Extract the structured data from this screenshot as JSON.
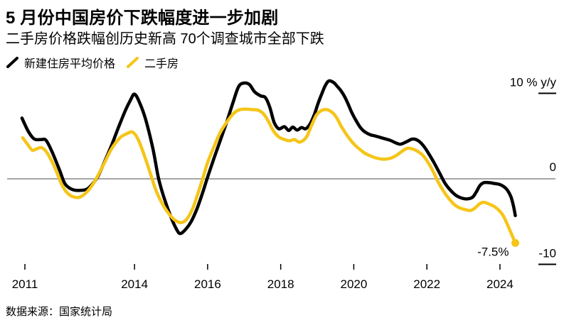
{
  "page": {
    "title": "5 月份中国房价下跌幅度进一步加剧",
    "subtitle": "二手房价格跌幅创历史新高 70个调查城市全部下跌",
    "source": "数据来源：国家统计局"
  },
  "legend": {
    "items": [
      {
        "label": "新建住房平均价格",
        "color": "#000000"
      },
      {
        "label": "二手房",
        "color": "#F5C518"
      }
    ]
  },
  "chart_data": {
    "type": "line",
    "title": "5 月份中国房价下跌幅度进一步加剧",
    "subtitle": "二手房价格跌幅创历史新高 70个调查城市全部下跌",
    "unit": "% y/y",
    "grid_color": "#6f6f6f",
    "x_axis": {
      "ticks": [
        2011,
        2014,
        2016,
        2018,
        2020,
        2022,
        2024
      ],
      "range": [
        2010.9,
        2024.45
      ]
    },
    "y_axis": {
      "range": [
        -10,
        10
      ],
      "labels": [
        {
          "value": 10,
          "text": "10 % y/y",
          "tick": true
        },
        {
          "value": 0,
          "text": "0",
          "tick": false
        },
        {
          "value": -10,
          "text": "-10",
          "tick": true
        }
      ]
    },
    "annotation": {
      "text": "-7.5%",
      "series": "二手房",
      "value": -7.5
    },
    "series": [
      {
        "name": "新建住房平均价格",
        "color": "#000000",
        "end_dot": false,
        "points": [
          [
            2010.92,
            7.1
          ],
          [
            2011.1,
            5.5
          ],
          [
            2011.26,
            4.65
          ],
          [
            2011.45,
            4.6
          ],
          [
            2011.58,
            4.5
          ],
          [
            2011.75,
            3.1
          ],
          [
            2011.95,
            1.0
          ],
          [
            2012.1,
            -0.6
          ],
          [
            2012.3,
            -1.25
          ],
          [
            2012.5,
            -1.35
          ],
          [
            2012.7,
            -1.2
          ],
          [
            2012.85,
            -0.6
          ],
          [
            2013.0,
            0.3
          ],
          [
            2013.18,
            2.0
          ],
          [
            2013.37,
            3.9
          ],
          [
            2013.55,
            5.9
          ],
          [
            2013.75,
            8.0
          ],
          [
            2013.9,
            9.3
          ],
          [
            2014.0,
            9.9
          ],
          [
            2014.13,
            9.0
          ],
          [
            2014.3,
            7.0
          ],
          [
            2014.5,
            3.6
          ],
          [
            2014.65,
            0.2
          ],
          [
            2014.8,
            -2.1
          ],
          [
            2015.0,
            -4.5
          ],
          [
            2015.15,
            -5.9
          ],
          [
            2015.25,
            -6.4
          ],
          [
            2015.4,
            -5.9
          ],
          [
            2015.55,
            -5.0
          ],
          [
            2015.7,
            -3.6
          ],
          [
            2015.85,
            -1.8
          ],
          [
            2016.0,
            0.2
          ],
          [
            2016.15,
            2.1
          ],
          [
            2016.33,
            4.3
          ],
          [
            2016.52,
            6.6
          ],
          [
            2016.7,
            9.0
          ],
          [
            2016.85,
            10.8
          ],
          [
            2017.0,
            11.2
          ],
          [
            2017.15,
            11.0
          ],
          [
            2017.28,
            10.2
          ],
          [
            2017.45,
            9.7
          ],
          [
            2017.58,
            9.5
          ],
          [
            2017.7,
            8.4
          ],
          [
            2017.82,
            6.6
          ],
          [
            2017.95,
            5.85
          ],
          [
            2018.1,
            6.1
          ],
          [
            2018.22,
            5.65
          ],
          [
            2018.33,
            6.05
          ],
          [
            2018.45,
            5.7
          ],
          [
            2018.57,
            6.0
          ],
          [
            2018.68,
            5.85
          ],
          [
            2018.8,
            6.4
          ],
          [
            2018.92,
            7.5
          ],
          [
            2019.02,
            8.8
          ],
          [
            2019.13,
            10.0
          ],
          [
            2019.22,
            10.9
          ],
          [
            2019.32,
            11.45
          ],
          [
            2019.45,
            11.25
          ],
          [
            2019.55,
            10.8
          ],
          [
            2019.65,
            10.3
          ],
          [
            2019.75,
            9.6
          ],
          [
            2019.85,
            8.7
          ],
          [
            2019.95,
            7.7
          ],
          [
            2020.05,
            6.9
          ],
          [
            2020.18,
            6.0
          ],
          [
            2020.3,
            5.5
          ],
          [
            2020.45,
            5.15
          ],
          [
            2020.6,
            5.0
          ],
          [
            2020.8,
            4.75
          ],
          [
            2021.0,
            4.5
          ],
          [
            2021.15,
            4.2
          ],
          [
            2021.28,
            4.05
          ],
          [
            2021.45,
            4.35
          ],
          [
            2021.6,
            4.65
          ],
          [
            2021.75,
            4.5
          ],
          [
            2021.9,
            3.9
          ],
          [
            2022.05,
            2.95
          ],
          [
            2022.2,
            1.85
          ],
          [
            2022.35,
            0.65
          ],
          [
            2022.5,
            -0.55
          ],
          [
            2022.65,
            -1.35
          ],
          [
            2022.8,
            -1.95
          ],
          [
            2022.95,
            -2.25
          ],
          [
            2023.1,
            -2.35
          ],
          [
            2023.25,
            -2.15
          ],
          [
            2023.35,
            -1.55
          ],
          [
            2023.45,
            -0.8
          ],
          [
            2023.56,
            -0.45
          ],
          [
            2023.7,
            -0.45
          ],
          [
            2023.85,
            -0.55
          ],
          [
            2023.98,
            -0.65
          ],
          [
            2024.1,
            -0.9
          ],
          [
            2024.2,
            -1.3
          ],
          [
            2024.3,
            -2.1
          ],
          [
            2024.37,
            -3.2
          ],
          [
            2024.42,
            -4.3
          ]
        ]
      },
      {
        "name": "二手房",
        "color": "#F5C518",
        "end_dot": true,
        "points": [
          [
            2010.94,
            4.8
          ],
          [
            2011.08,
            4.0
          ],
          [
            2011.2,
            3.35
          ],
          [
            2011.32,
            3.5
          ],
          [
            2011.45,
            3.65
          ],
          [
            2011.58,
            3.2
          ],
          [
            2011.72,
            2.2
          ],
          [
            2011.88,
            0.7
          ],
          [
            2012.0,
            -0.6
          ],
          [
            2012.15,
            -1.6
          ],
          [
            2012.32,
            -2.1
          ],
          [
            2012.5,
            -2.15
          ],
          [
            2012.68,
            -1.6
          ],
          [
            2012.85,
            -0.7
          ],
          [
            2013.0,
            0.4
          ],
          [
            2013.18,
            1.9
          ],
          [
            2013.37,
            3.5
          ],
          [
            2013.6,
            4.8
          ],
          [
            2013.8,
            5.3
          ],
          [
            2013.95,
            5.45
          ],
          [
            2014.1,
            4.6
          ],
          [
            2014.28,
            2.6
          ],
          [
            2014.45,
            0.4
          ],
          [
            2014.6,
            -1.5
          ],
          [
            2014.8,
            -3.2
          ],
          [
            2015.0,
            -4.4
          ],
          [
            2015.15,
            -4.95
          ],
          [
            2015.3,
            -5.1
          ],
          [
            2015.45,
            -4.6
          ],
          [
            2015.6,
            -3.4
          ],
          [
            2015.72,
            -1.9
          ],
          [
            2015.85,
            -0.2
          ],
          [
            2016.0,
            1.9
          ],
          [
            2016.15,
            3.5
          ],
          [
            2016.33,
            5.3
          ],
          [
            2016.52,
            6.6
          ],
          [
            2016.7,
            7.6
          ],
          [
            2016.85,
            8.05
          ],
          [
            2017.0,
            8.15
          ],
          [
            2017.2,
            8.1
          ],
          [
            2017.4,
            8.0
          ],
          [
            2017.55,
            7.5
          ],
          [
            2017.68,
            6.6
          ],
          [
            2017.8,
            5.6
          ],
          [
            2017.95,
            4.9
          ],
          [
            2018.1,
            4.6
          ],
          [
            2018.25,
            4.45
          ],
          [
            2018.37,
            4.6
          ],
          [
            2018.5,
            4.3
          ],
          [
            2018.62,
            4.5
          ],
          [
            2018.72,
            5.0
          ],
          [
            2018.85,
            6.3
          ],
          [
            2018.97,
            7.4
          ],
          [
            2019.1,
            7.95
          ],
          [
            2019.22,
            8.1
          ],
          [
            2019.33,
            8.0
          ],
          [
            2019.45,
            7.6
          ],
          [
            2019.55,
            7.0
          ],
          [
            2019.65,
            6.2
          ],
          [
            2019.78,
            5.3
          ],
          [
            2019.9,
            4.6
          ],
          [
            2020.02,
            4.0
          ],
          [
            2020.15,
            3.5
          ],
          [
            2020.3,
            3.0
          ],
          [
            2020.45,
            2.7
          ],
          [
            2020.6,
            2.45
          ],
          [
            2020.8,
            2.3
          ],
          [
            2021.0,
            2.4
          ],
          [
            2021.15,
            2.7
          ],
          [
            2021.3,
            3.15
          ],
          [
            2021.45,
            3.55
          ],
          [
            2021.6,
            3.5
          ],
          [
            2021.75,
            3.2
          ],
          [
            2021.9,
            2.7
          ],
          [
            2022.05,
            1.8
          ],
          [
            2022.18,
            0.8
          ],
          [
            2022.3,
            -0.3
          ],
          [
            2022.45,
            -1.4
          ],
          [
            2022.6,
            -2.3
          ],
          [
            2022.75,
            -3.0
          ],
          [
            2022.9,
            -3.4
          ],
          [
            2023.05,
            -3.6
          ],
          [
            2023.2,
            -3.7
          ],
          [
            2023.32,
            -3.4
          ],
          [
            2023.45,
            -2.9
          ],
          [
            2023.56,
            -2.75
          ],
          [
            2023.7,
            -2.95
          ],
          [
            2023.85,
            -3.25
          ],
          [
            2024.0,
            -3.8
          ],
          [
            2024.1,
            -4.4
          ],
          [
            2024.2,
            -5.3
          ],
          [
            2024.3,
            -6.3
          ],
          [
            2024.42,
            -7.5
          ]
        ]
      }
    ]
  }
}
